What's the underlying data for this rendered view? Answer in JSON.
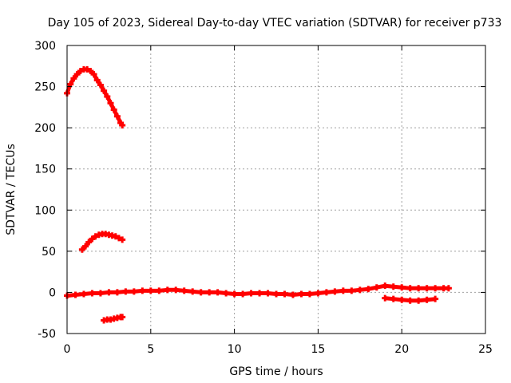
{
  "chart_data": {
    "type": "scatter",
    "title": "Day 105 of 2023, Sidereal Day-to-day VTEC variation (SDTVAR) for receiver p733",
    "xlabel": "GPS time / hours",
    "ylabel": "SDTVAR / TECUs",
    "xlim": [
      0,
      25
    ],
    "ylim": [
      -50,
      300
    ],
    "xticks": [
      0,
      5,
      10,
      15,
      20,
      25
    ],
    "yticks": [
      -50,
      0,
      50,
      100,
      150,
      200,
      250,
      300
    ],
    "xtick_labels": [
      "0",
      "5",
      "10",
      "15",
      "20",
      "25"
    ],
    "ytick_labels": [
      "-50",
      "0",
      "50",
      "100",
      "150",
      "200",
      "250",
      "300"
    ],
    "grid": true,
    "marker": "plus",
    "color": "#ff0000",
    "series": [
      {
        "name": "arc-high",
        "x": [
          0.0,
          0.2,
          0.4,
          0.6,
          0.8,
          1.0,
          1.2,
          1.4,
          1.6,
          1.8,
          2.0,
          2.2,
          2.4,
          2.6,
          2.8,
          3.0,
          3.2,
          3.3
        ],
        "y": [
          242,
          253,
          260,
          265,
          269,
          271,
          271,
          269,
          265,
          258,
          252,
          245,
          238,
          230,
          222,
          214,
          206,
          203
        ]
      },
      {
        "name": "arc-mid",
        "x": [
          0.9,
          1.1,
          1.3,
          1.5,
          1.7,
          1.9,
          2.1,
          2.3,
          2.5,
          2.7,
          2.9,
          3.1,
          3.3
        ],
        "y": [
          52,
          56,
          61,
          65,
          68,
          70,
          71,
          71,
          70,
          69,
          68,
          66,
          64
        ]
      },
      {
        "name": "arc-low",
        "x": [
          2.2,
          2.4,
          2.6,
          2.8,
          3.0,
          3.2,
          3.3
        ],
        "y": [
          -34,
          -33,
          -33,
          -32,
          -31,
          -30,
          -30
        ]
      },
      {
        "name": "baseline",
        "x": [
          0.0,
          0.5,
          1.0,
          1.5,
          2.0,
          2.5,
          3.0,
          3.5,
          4.0,
          4.5,
          5.0,
          5.5,
          6.0,
          6.5,
          7.0,
          7.5,
          8.0,
          8.5,
          9.0,
          9.5,
          10.0,
          10.5,
          11.0,
          11.5,
          12.0,
          12.5,
          13.0,
          13.5,
          14.0,
          14.5,
          15.0,
          15.5,
          16.0,
          16.5,
          17.0,
          17.5,
          18.0,
          18.5,
          19.0,
          19.5,
          20.0,
          20.5,
          21.0,
          21.5,
          22.0,
          22.5,
          22.8
        ],
        "y": [
          -4,
          -3,
          -2,
          -1,
          -1,
          0,
          0,
          1,
          1,
          2,
          2,
          2,
          3,
          3,
          2,
          1,
          0,
          0,
          0,
          -1,
          -2,
          -2,
          -1,
          -1,
          -1,
          -2,
          -2,
          -3,
          -2,
          -2,
          -1,
          0,
          1,
          2,
          2,
          3,
          4,
          6,
          8,
          7,
          6,
          5,
          5,
          5,
          5,
          5,
          5
        ]
      },
      {
        "name": "baseline-lower",
        "x": [
          19.0,
          19.5,
          20.0,
          20.5,
          21.0,
          21.5,
          22.0
        ],
        "y": [
          -7,
          -8,
          -9,
          -10,
          -10,
          -9,
          -8
        ]
      }
    ]
  }
}
